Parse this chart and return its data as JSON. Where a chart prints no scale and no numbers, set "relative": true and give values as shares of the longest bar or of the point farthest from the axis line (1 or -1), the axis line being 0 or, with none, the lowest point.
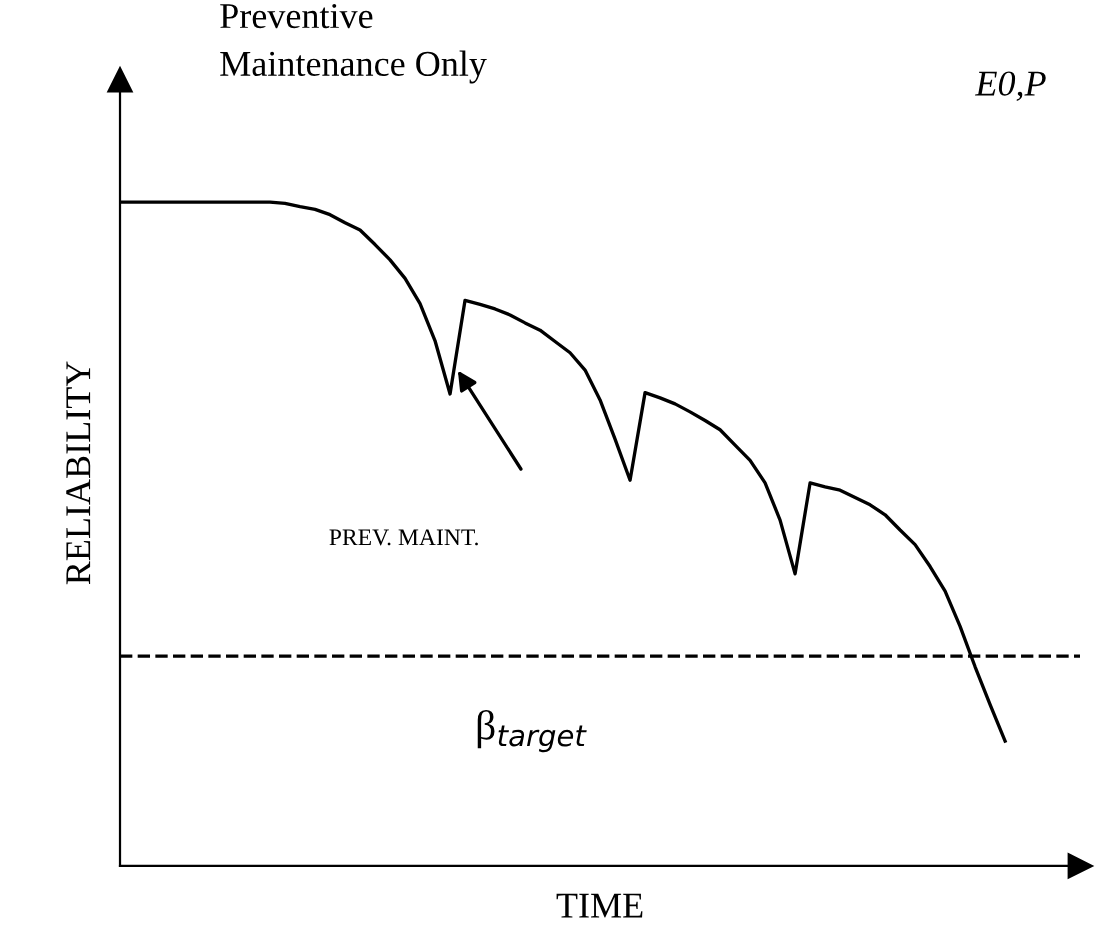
{
  "chart_data": {
    "type": "line",
    "relative": true,
    "title": "Preventive\nMaintenance Only",
    "xlabel": "TIME",
    "ylabel": "RELIABILITY",
    "categories": [
      null,
      null,
      null,
      null,
      null,
      null,
      null,
      null,
      null,
      null,
      null,
      null,
      null,
      null,
      null,
      null,
      null,
      null,
      null,
      null,
      null,
      null,
      null,
      null,
      null,
      null,
      null,
      null,
      null,
      null,
      null,
      null,
      null,
      null,
      null,
      null,
      null,
      null,
      null,
      null,
      null,
      null,
      null,
      null,
      null,
      null,
      null,
      null,
      null,
      null,
      null,
      null,
      null,
      null,
      null,
      null,
      null,
      null,
      null,
      null,
      null,
      null,
      null,
      null
    ],
    "series": [
      {
        "color": "#000000",
        "values": [
          1.0,
          1.0,
          1.0,
          1.0,
          1.0,
          1.0,
          1.0,
          1.0,
          1.0,
          1.0,
          1.0,
          0.998,
          0.993,
          0.989,
          0.981,
          0.969,
          0.958,
          0.936,
          0.913,
          0.885,
          0.847,
          0.791,
          0.711,
          0.852,
          0.846,
          0.839,
          0.83,
          0.818,
          0.807,
          0.79,
          0.773,
          0.747,
          0.702,
          0.643,
          0.581,
          0.713,
          0.705,
          0.696,
          0.684,
          0.671,
          0.657,
          0.634,
          0.611,
          0.577,
          0.521,
          0.44,
          0.577,
          0.571,
          0.566,
          0.555,
          0.544,
          0.529,
          0.506,
          0.484,
          0.451,
          0.414,
          0.361,
          0.3,
          0.243,
          0.188,
          null,
          null,
          null,
          null
        ]
      }
    ],
    "ref_lines": [
      {
        "axis": "y",
        "value": 0.316,
        "label": "β$_{target}$",
        "color": "#000000",
        "line_style": "dashed"
      }
    ],
    "annotations": [
      "PREV. MAINT.",
      "E0,P"
    ],
    "legend": false,
    "marker": "none",
    "line_style": "solid"
  }
}
